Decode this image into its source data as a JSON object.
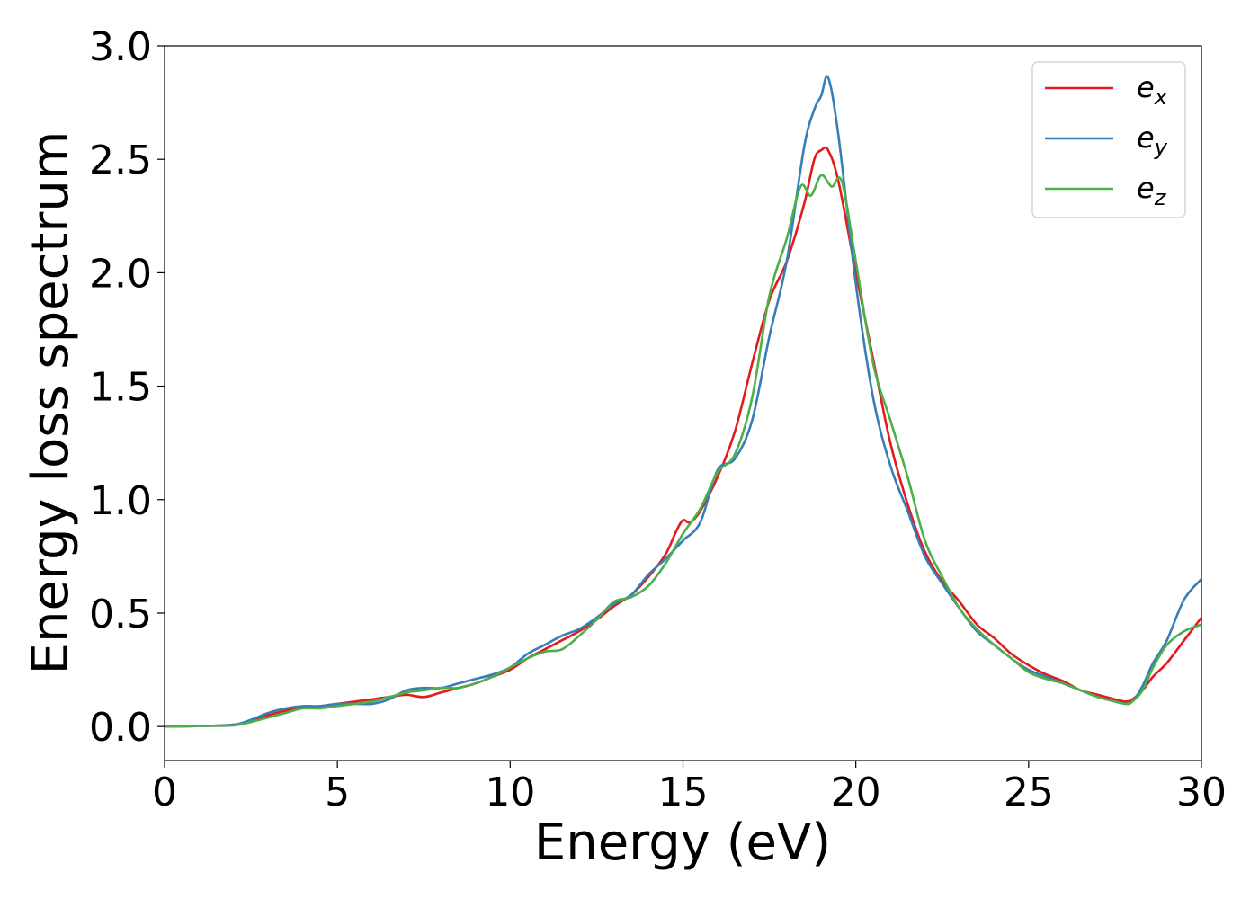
{
  "chart_data": {
    "type": "line",
    "title": "",
    "xlabel": "Energy (eV)",
    "ylabel": "Energy loss spectrum",
    "xlim": [
      0,
      30
    ],
    "ylim": [
      -0.15,
      3.0
    ],
    "xticks": [
      0,
      5,
      10,
      15,
      20,
      25,
      30
    ],
    "xtick_labels": [
      "0",
      "5",
      "10",
      "15",
      "20",
      "25",
      "30"
    ],
    "yticks": [
      0.0,
      0.5,
      1.0,
      1.5,
      2.0,
      2.5,
      3.0
    ],
    "ytick_labels": [
      "0.0",
      "0.5",
      "1.0",
      "1.5",
      "2.0",
      "2.5",
      "3.0"
    ],
    "grid": false,
    "legend_position": "top-right",
    "series": [
      {
        "name": "e_x",
        "base": "e",
        "sub": "x",
        "color": "#e41a1c",
        "x": [
          0,
          1,
          2,
          2.5,
          3,
          3.5,
          4,
          4.5,
          5,
          5.5,
          6,
          6.5,
          7,
          7.5,
          8,
          8.5,
          9,
          9.5,
          10,
          10.5,
          11,
          11.5,
          12,
          12.5,
          13,
          13.5,
          14,
          14.5,
          14.8,
          15,
          15.2,
          15.5,
          16,
          16.5,
          17,
          17.5,
          18,
          18.5,
          18.8,
          19,
          19.2,
          19.5,
          20,
          20.5,
          21,
          21.5,
          22,
          22.5,
          23,
          23.5,
          24,
          24.5,
          25,
          25.5,
          26,
          26.5,
          27,
          27.5,
          27.8,
          28,
          28.3,
          28.6,
          29,
          29.5,
          30
        ],
        "y": [
          0,
          0.002,
          0.008,
          0.025,
          0.05,
          0.07,
          0.085,
          0.09,
          0.1,
          0.11,
          0.12,
          0.13,
          0.14,
          0.13,
          0.15,
          0.17,
          0.19,
          0.22,
          0.25,
          0.3,
          0.34,
          0.38,
          0.42,
          0.47,
          0.53,
          0.58,
          0.66,
          0.76,
          0.86,
          0.91,
          0.9,
          0.95,
          1.1,
          1.3,
          1.6,
          1.88,
          2.05,
          2.3,
          2.5,
          2.54,
          2.54,
          2.4,
          2.0,
          1.62,
          1.25,
          0.98,
          0.77,
          0.64,
          0.55,
          0.45,
          0.39,
          0.32,
          0.27,
          0.23,
          0.2,
          0.16,
          0.14,
          0.12,
          0.11,
          0.12,
          0.16,
          0.22,
          0.28,
          0.38,
          0.48
        ]
      },
      {
        "name": "e_y",
        "base": "e",
        "sub": "y",
        "color": "#377eb8",
        "x": [
          0,
          1,
          2,
          2.5,
          3,
          3.5,
          4,
          4.5,
          5,
          5.5,
          6,
          6.5,
          7,
          7.5,
          8,
          8.5,
          9,
          9.5,
          10,
          10.5,
          11,
          11.5,
          12,
          12.5,
          13,
          13.5,
          14,
          14.5,
          15,
          15.5,
          16,
          16.5,
          17,
          17.5,
          18,
          18.5,
          18.8,
          19,
          19.2,
          19.5,
          20,
          20.5,
          21,
          21.5,
          22,
          22.5,
          23,
          23.5,
          24,
          24.5,
          25,
          25.5,
          26,
          26.5,
          27,
          27.5,
          27.8,
          28,
          28.3,
          28.6,
          29,
          29.5,
          30
        ],
        "y": [
          0,
          0.002,
          0.008,
          0.03,
          0.06,
          0.08,
          0.09,
          0.09,
          0.1,
          0.1,
          0.1,
          0.12,
          0.16,
          0.17,
          0.17,
          0.19,
          0.21,
          0.23,
          0.26,
          0.32,
          0.36,
          0.4,
          0.43,
          0.48,
          0.54,
          0.58,
          0.67,
          0.74,
          0.82,
          0.9,
          1.13,
          1.18,
          1.35,
          1.72,
          2.05,
          2.55,
          2.72,
          2.78,
          2.86,
          2.6,
          1.95,
          1.45,
          1.15,
          0.95,
          0.75,
          0.63,
          0.52,
          0.42,
          0.36,
          0.3,
          0.25,
          0.22,
          0.19,
          0.16,
          0.13,
          0.11,
          0.1,
          0.11,
          0.18,
          0.28,
          0.38,
          0.56,
          0.65
        ]
      },
      {
        "name": "e_z",
        "base": "e",
        "sub": "z",
        "color": "#4daf4a",
        "x": [
          0,
          1,
          2,
          2.5,
          3,
          3.5,
          4,
          4.5,
          5,
          5.5,
          6,
          6.5,
          7,
          7.5,
          8,
          8.5,
          9,
          9.5,
          10,
          10.5,
          11,
          11.5,
          12,
          12.5,
          13,
          13.5,
          14,
          14.5,
          15,
          15.5,
          16,
          16.5,
          17,
          17.5,
          18,
          18.4,
          18.7,
          19,
          19.3,
          19.6,
          20,
          20.5,
          21,
          21.5,
          22,
          22.5,
          23,
          23.5,
          24,
          24.5,
          25,
          25.5,
          26,
          26.5,
          27,
          27.5,
          27.8,
          28,
          28.3,
          28.6,
          29,
          29.5,
          30
        ],
        "y": [
          0,
          0.002,
          0.005,
          0.02,
          0.04,
          0.06,
          0.08,
          0.08,
          0.09,
          0.1,
          0.11,
          0.13,
          0.15,
          0.16,
          0.17,
          0.17,
          0.19,
          0.22,
          0.26,
          0.3,
          0.33,
          0.34,
          0.4,
          0.47,
          0.55,
          0.57,
          0.62,
          0.72,
          0.85,
          0.96,
          1.12,
          1.2,
          1.45,
          1.9,
          2.15,
          2.38,
          2.34,
          2.43,
          2.38,
          2.4,
          2.05,
          1.6,
          1.35,
          1.1,
          0.82,
          0.66,
          0.52,
          0.43,
          0.36,
          0.3,
          0.24,
          0.21,
          0.19,
          0.16,
          0.13,
          0.11,
          0.1,
          0.11,
          0.16,
          0.26,
          0.36,
          0.42,
          0.45
        ]
      }
    ]
  }
}
